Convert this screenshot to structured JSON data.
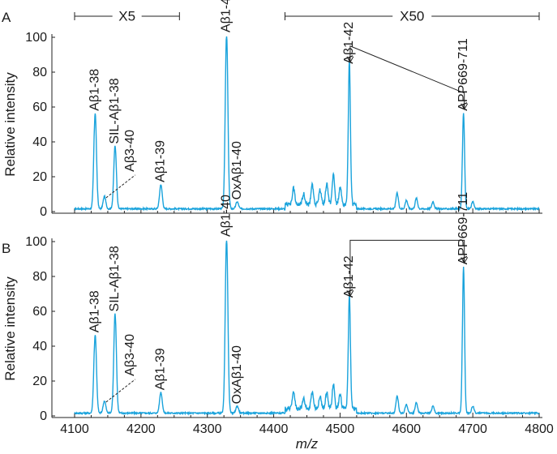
{
  "chart_data": [
    {
      "type": "line",
      "panel_label": "A",
      "ylabel": "Relative intensity",
      "xlim": [
        4100,
        4800
      ],
      "ylim": [
        0,
        100
      ],
      "yticks": [
        0,
        20,
        40,
        60,
        80,
        100
      ],
      "color": "#1aa3dc",
      "scale_markers": [
        {
          "label": "X5",
          "range": [
            4100,
            4258
          ]
        },
        {
          "label": "X50",
          "range": [
            4417,
            4800
          ]
        }
      ],
      "peaks": [
        {
          "mz": 4131,
          "y": 55,
          "label": "Aβ1-38"
        },
        {
          "mz": 4161,
          "y": 36,
          "label": "SIL-Aβ1-38"
        },
        {
          "mz": 4145,
          "y": 7,
          "label": "Aβ3-40",
          "leader": true
        },
        {
          "mz": 4230,
          "y": 14,
          "label": "Aβ1-39"
        },
        {
          "mz": 4329,
          "y": 100,
          "label": "Aβ1-40"
        },
        {
          "mz": 4345,
          "y": 4,
          "label": "OxAβ1-40"
        },
        {
          "mz": 4514,
          "y": 82,
          "label": "Aβ1-42"
        },
        {
          "mz": 4686,
          "y": 55,
          "label": "APP669-711"
        }
      ],
      "minor_peaks": [
        [
          4430,
          9
        ],
        [
          4445,
          6
        ],
        [
          4458,
          11
        ],
        [
          4470,
          8
        ],
        [
          4480,
          12
        ],
        [
          4490,
          17
        ],
        [
          4500,
          10
        ],
        [
          4586,
          9
        ],
        [
          4600,
          5
        ],
        [
          4615,
          6
        ],
        [
          4640,
          4
        ],
        [
          4700,
          4
        ]
      ]
    },
    {
      "type": "line",
      "panel_label": "B",
      "ylabel": "Relative intensity",
      "xlabel": "m/z",
      "xlim": [
        4100,
        4800
      ],
      "ylim": [
        0,
        100
      ],
      "xticks": [
        4100,
        4200,
        4300,
        4400,
        4500,
        4600,
        4700,
        4800
      ],
      "yticks": [
        0,
        20,
        40,
        60,
        80,
        100
      ],
      "color": "#1aa3dc",
      "peaks": [
        {
          "mz": 4131,
          "y": 45,
          "label": "Aβ1-38"
        },
        {
          "mz": 4161,
          "y": 57,
          "label": "SIL-Aβ1-38"
        },
        {
          "mz": 4145,
          "y": 7,
          "label": "Aβ3-40",
          "leader": true
        },
        {
          "mz": 4230,
          "y": 12,
          "label": "Aβ1-39"
        },
        {
          "mz": 4329,
          "y": 100,
          "label": "Aβ1-40"
        },
        {
          "mz": 4345,
          "y": 4,
          "label": "OxAβ1-40"
        },
        {
          "mz": 4514,
          "y": 65,
          "label": "Aβ1-42"
        },
        {
          "mz": 4686,
          "y": 84,
          "label": "APP669-711"
        }
      ],
      "minor_peaks": [
        [
          4430,
          10
        ],
        [
          4445,
          6
        ],
        [
          4458,
          9
        ],
        [
          4470,
          7
        ],
        [
          4480,
          9
        ],
        [
          4490,
          14
        ],
        [
          4500,
          8
        ],
        [
          4586,
          10
        ],
        [
          4600,
          5
        ],
        [
          4615,
          6
        ],
        [
          4640,
          4
        ],
        [
          4700,
          4
        ]
      ]
    }
  ]
}
